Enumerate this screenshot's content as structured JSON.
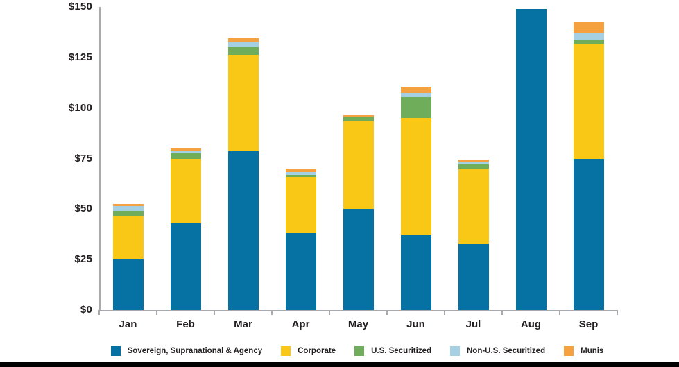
{
  "chart_data": {
    "type": "bar",
    "stacked": true,
    "title": "",
    "xlabel": "",
    "ylabel": "",
    "categories": [
      "Jan",
      "Feb",
      "Mar",
      "Apr",
      "May",
      "Jun",
      "Jul",
      "Aug",
      "Sep"
    ],
    "series": [
      {
        "name": "Sovereign, Supranational & Agency",
        "color": "#0672A4",
        "values": [
          25,
          43,
          78.5,
          38,
          50,
          37,
          33,
          149,
          75
        ]
      },
      {
        "name": "Corporate",
        "color": "#F9C816",
        "values": [
          21.5,
          32,
          48,
          28,
          43.5,
          58,
          37,
          0,
          57
        ]
      },
      {
        "name": "U.S. Securitized",
        "color": "#6FAD5B",
        "values": [
          2.5,
          2.5,
          3.5,
          1,
          2,
          10.5,
          2,
          0,
          2
        ]
      },
      {
        "name": "Non-U.S. Securitized",
        "color": "#A5CFE2",
        "values": [
          2.5,
          1.5,
          3,
          1.5,
          0,
          2,
          1.5,
          0,
          3.5
        ]
      },
      {
        "name": "Munis",
        "color": "#F6A140",
        "values": [
          1,
          1,
          1.5,
          1.5,
          1,
          3,
          1,
          0,
          5
        ]
      }
    ],
    "totals": [
      52.5,
      80,
      134.5,
      70,
      96.5,
      110.5,
      74.5,
      149,
      142.5
    ],
    "ylim": [
      0,
      150
    ],
    "y_tick_interval": 25,
    "y_tick_labels": [
      "$0",
      "$25",
      "$50",
      "$75",
      "$100",
      "$125",
      "$150"
    ],
    "grid": false,
    "legend_position": "bottom"
  },
  "colors": {
    "axis": "#A7A9AC",
    "text": "#231F20",
    "background": "#FFFFFF",
    "bottom_border": "#000000"
  }
}
